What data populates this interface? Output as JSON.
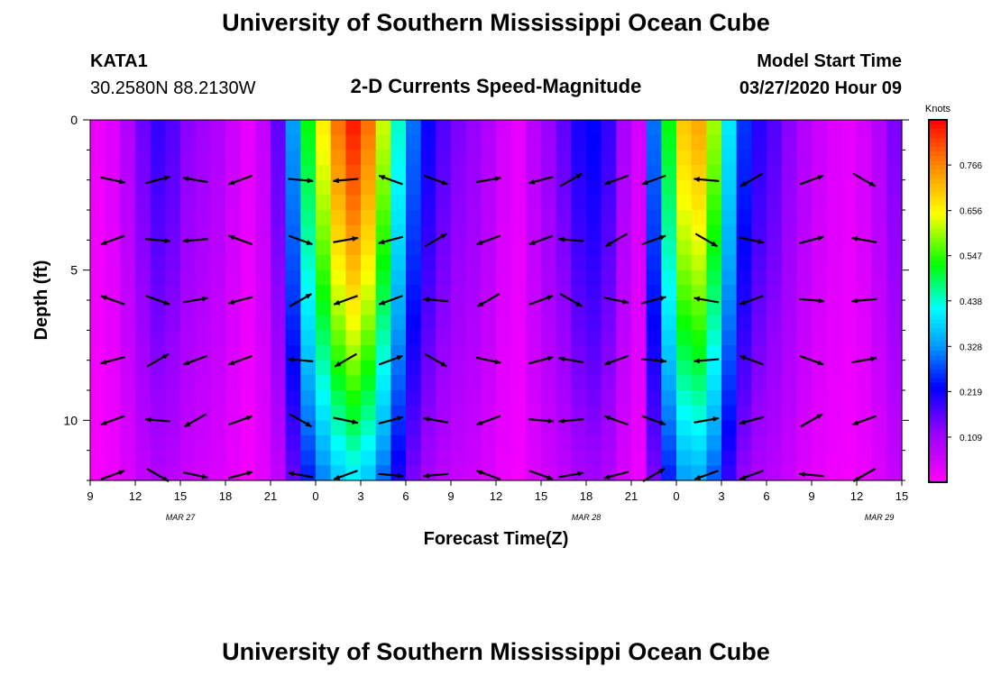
{
  "header": {
    "title_top": "University of Southern Mississippi Ocean Cube",
    "title_bottom": "University of Southern Mississippi Ocean Cube",
    "station_id": "KATA1",
    "station_coords": "30.2580N 88.2130W",
    "subtitle": "2-D Currents Speed-Magnitude",
    "model_start_label": "Model Start Time",
    "model_start_value": "03/27/2020 Hour 09"
  },
  "chart_data": {
    "type": "heatmap",
    "title": "2-D Currents Speed-Magnitude",
    "xlabel": "Forecast Time(Z)",
    "ylabel": "Depth (ft)",
    "x_tick_labels": [
      "9",
      "12",
      "15",
      "18",
      "21",
      "0",
      "3",
      "6",
      "9",
      "12",
      "15",
      "18",
      "21",
      "0",
      "3",
      "6",
      "9",
      "12",
      "15"
    ],
    "date_labels": [
      "MAR 27",
      "MAR 28",
      "MAR 29"
    ],
    "y_ticks": [
      0,
      5,
      10
    ],
    "ylim": [
      0,
      12
    ],
    "y_inverted": true,
    "x_hours": [
      0,
      54
    ],
    "colorbar": {
      "label": "Knots",
      "ticks": [
        0.109,
        0.219,
        0.328,
        0.438,
        0.547,
        0.656,
        0.766
      ],
      "tick_labels": [
        "0.109",
        "0.219",
        "0.328",
        "0.438",
        "0.547",
        "0.656",
        "0.766"
      ],
      "range": [
        0.0,
        0.875
      ]
    },
    "speed_profile": {
      "hours": [
        0,
        1,
        2,
        3,
        4,
        5,
        6,
        7,
        8,
        9,
        10,
        11,
        12,
        13,
        14,
        15,
        16,
        17,
        18,
        19,
        20,
        21,
        22,
        23,
        24,
        25,
        26,
        27,
        28,
        29,
        30,
        31,
        32,
        33,
        34,
        35,
        36,
        37,
        38,
        39,
        40,
        41,
        42,
        43,
        44,
        45,
        46,
        47,
        48,
        49,
        50,
        51,
        52,
        53,
        54
      ],
      "speed_at_surface_kn": [
        0.02,
        0.04,
        0.09,
        0.15,
        0.19,
        0.17,
        0.13,
        0.11,
        0.09,
        0.06,
        0.03,
        0.07,
        0.16,
        0.33,
        0.52,
        0.66,
        0.78,
        0.85,
        0.78,
        0.62,
        0.44,
        0.3,
        0.22,
        0.17,
        0.14,
        0.12,
        0.09,
        0.05,
        0.03,
        0.08,
        0.12,
        0.16,
        0.21,
        0.23,
        0.19,
        0.1,
        0.05,
        0.3,
        0.52,
        0.7,
        0.73,
        0.6,
        0.4,
        0.26,
        0.2,
        0.17,
        0.13,
        0.09,
        0.06,
        0.04,
        0.03,
        0.05,
        0.09,
        0.14,
        0.18
      ],
      "depth_decay": 0.55
    },
    "vector_rows_depth_ft": [
      2,
      4,
      6,
      8,
      10,
      12
    ],
    "vector_columns_hour": [
      1.5,
      4.5,
      7,
      10,
      14,
      17,
      20,
      23,
      26.5,
      30,
      32,
      35,
      37.5,
      41,
      44,
      48,
      51.5
    ],
    "current_vectors_note": "Current direction arrows drawn over speed field"
  }
}
